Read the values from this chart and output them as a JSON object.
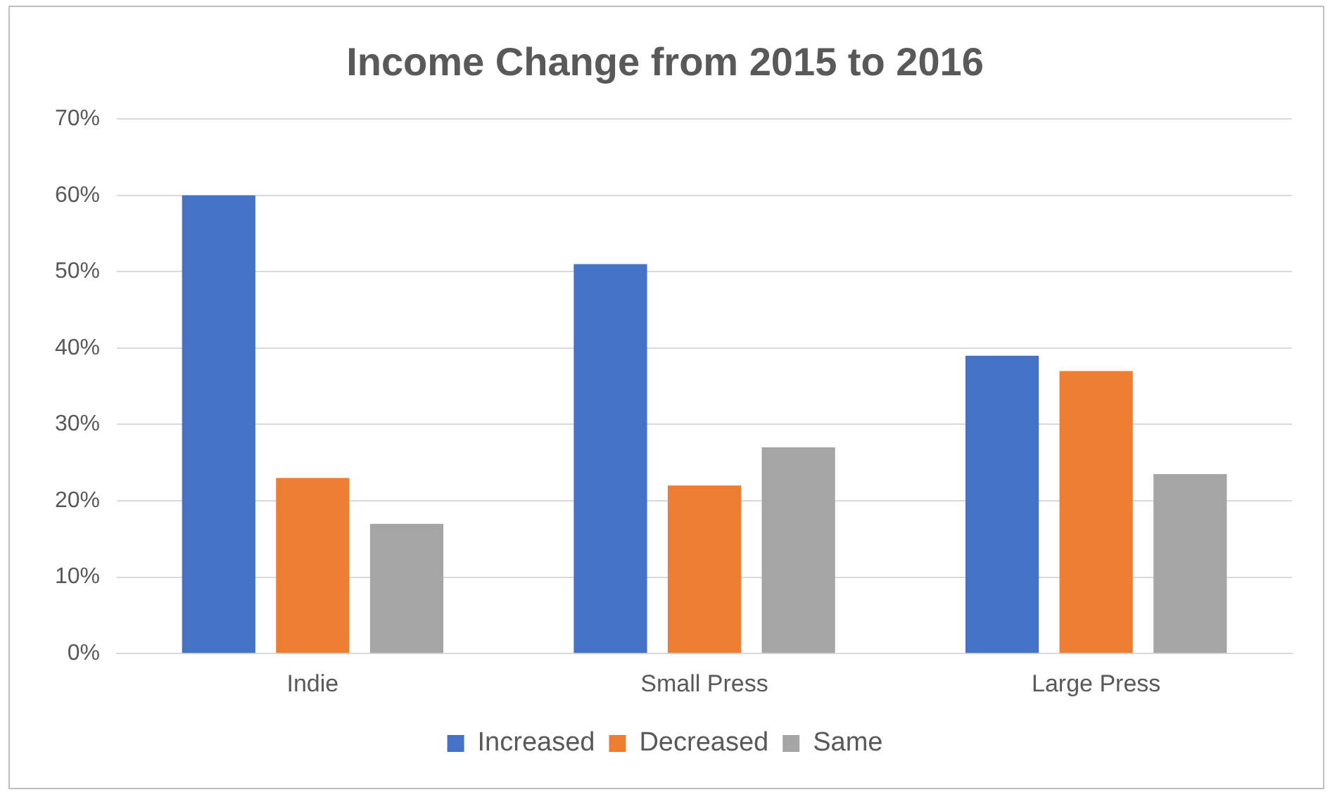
{
  "chart_data": {
    "type": "bar",
    "title": "Income Change from 2015 to 2016",
    "categories": [
      "Indie",
      "Small Press",
      "Large Press"
    ],
    "series": [
      {
        "name": "Increased",
        "color": "#4472c4",
        "values": [
          60,
          51,
          39
        ]
      },
      {
        "name": "Decreased",
        "color": "#ed7d31",
        "values": [
          23,
          22,
          37
        ]
      },
      {
        "name": "Same",
        "color": "#a5a5a5",
        "values": [
          17,
          27,
          23.5
        ]
      }
    ],
    "ylim": [
      0,
      70
    ],
    "yticks": [
      {
        "value": 0,
        "label": "0%"
      },
      {
        "value": 10,
        "label": "10%"
      },
      {
        "value": 20,
        "label": "20%"
      },
      {
        "value": 30,
        "label": "30%"
      },
      {
        "value": 40,
        "label": "40%"
      },
      {
        "value": 50,
        "label": "50%"
      },
      {
        "value": 60,
        "label": "60%"
      },
      {
        "value": 70,
        "label": "70%"
      }
    ],
    "grid": "y",
    "legend": "bottom"
  }
}
